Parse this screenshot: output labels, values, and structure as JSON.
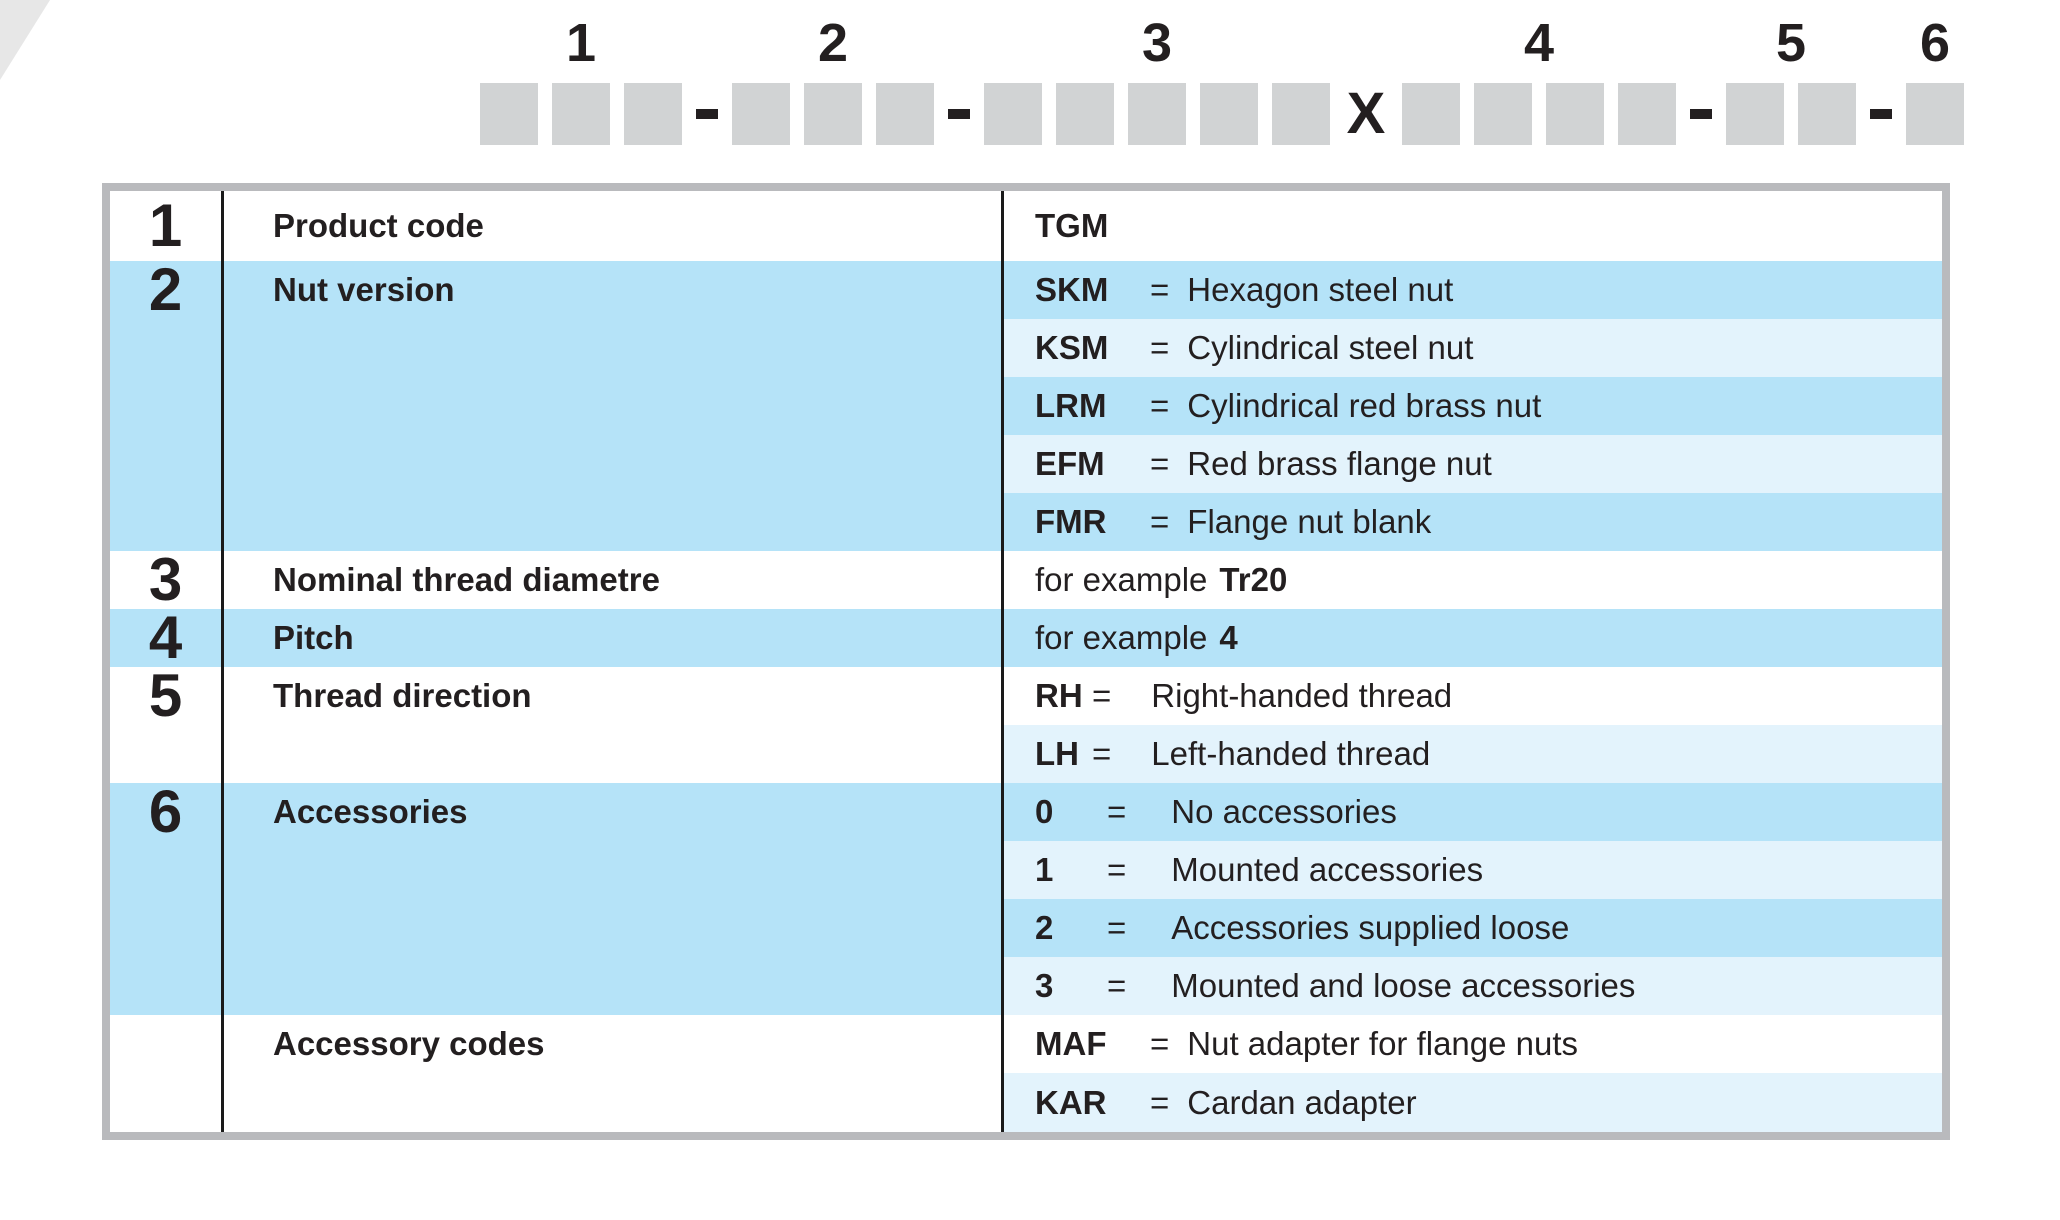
{
  "colors": {
    "box_gray": "#d1d3d4",
    "dark_blue": "#b5e3f8",
    "light_blue": "#e3f3fc",
    "border_gray": "#b9babd",
    "ink": "#231f20",
    "corner_gray": "#e7e7e7"
  },
  "code_strip": {
    "group_labels": [
      "1",
      "2",
      "3",
      "4",
      "5",
      "6"
    ],
    "separator": "-",
    "multiplier": "X",
    "pattern": [
      "box",
      "box",
      "box",
      "dash",
      "box",
      "box",
      "box",
      "dash",
      "box",
      "box",
      "box",
      "box",
      "box",
      "x",
      "box",
      "box",
      "box",
      "box",
      "dash",
      "box",
      "box",
      "dash",
      "box"
    ]
  },
  "table": {
    "eq_symbol": "=",
    "groups": [
      {
        "num": "1",
        "label": "Product code",
        "shade": "w",
        "rows": [
          {
            "code": "TGM",
            "shade": "w"
          }
        ]
      },
      {
        "num": "2",
        "label": "Nut version",
        "shade": "b",
        "rows": [
          {
            "code": "SKM",
            "eq": true,
            "desc": "Hexagon steel nut",
            "shade": "b"
          },
          {
            "code": "KSM",
            "eq": true,
            "desc": "Cylindrical steel nut",
            "shade": "l"
          },
          {
            "code": "LRM",
            "eq": true,
            "desc": "Cylindrical red brass nut",
            "shade": "b"
          },
          {
            "code": "EFM",
            "eq": true,
            "desc": "Red brass flange nut",
            "shade": "l"
          },
          {
            "code": "FMR",
            "eq": true,
            "desc": "Flange nut blank",
            "shade": "b"
          }
        ]
      },
      {
        "num": "3",
        "label": "Nominal thread diametre",
        "shade": "w",
        "rows": [
          {
            "prefix": "for example",
            "code": "Tr20",
            "shade": "w"
          }
        ]
      },
      {
        "num": "4",
        "label": "Pitch",
        "shade": "b",
        "rows": [
          {
            "prefix": "for example",
            "code": "4",
            "shade": "b"
          }
        ]
      },
      {
        "num": "5",
        "label": "Thread direction",
        "shade": "w",
        "rows": [
          {
            "code": "RH",
            "eq": true,
            "desc": "Right-handed thread",
            "shade": "w"
          },
          {
            "code": "LH",
            "eq": true,
            "desc": "Left-handed thread",
            "shade": "l"
          }
        ]
      },
      {
        "num": "6",
        "label": "Accessories",
        "shade": "b",
        "rows": [
          {
            "code": "0",
            "eq": true,
            "desc": "No accessories",
            "shade": "b"
          },
          {
            "code": "1",
            "eq": true,
            "desc": "Mounted accessories",
            "shade": "l"
          },
          {
            "code": "2",
            "eq": true,
            "desc": "Accessories supplied loose",
            "shade": "b"
          },
          {
            "code": "3",
            "eq": true,
            "desc": "Mounted and loose accessories",
            "shade": "l"
          }
        ]
      },
      {
        "num": "",
        "label": "Accessory codes",
        "shade": "w",
        "rows": [
          {
            "code": "MAF",
            "eq": true,
            "desc": "Nut adapter for flange nuts",
            "shade": "w"
          },
          {
            "code": "KAR",
            "eq": true,
            "desc": "Cardan adapter",
            "shade": "l"
          }
        ]
      }
    ]
  }
}
